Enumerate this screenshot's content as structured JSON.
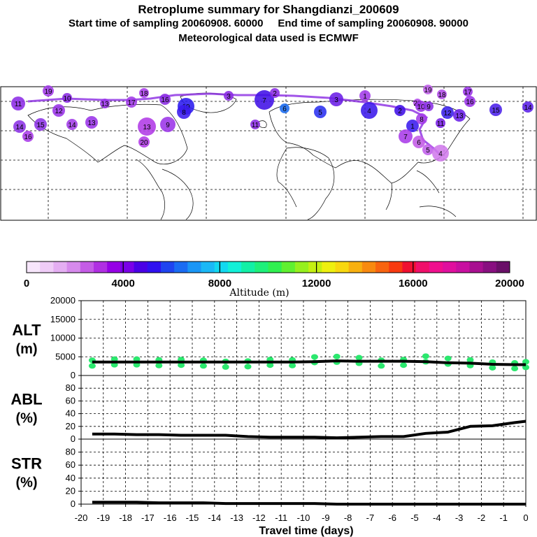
{
  "header": {
    "title": "Retroplume summary for Shangdianzi_200609",
    "subtitle": "Start time of sampling 20060908. 60000     End time of sampling 20060908. 90000",
    "met": "Meteorological data used is ECMWF"
  },
  "colorbar": {
    "label": "Altitude (m)",
    "ticks": [
      "0",
      "4000",
      "8000",
      "12000",
      "16000",
      "20000"
    ],
    "colors": [
      "#f7e6fb",
      "#efccf7",
      "#e4aef2",
      "#d68aec",
      "#c45ce6",
      "#b02fe2",
      "#9600e6",
      "#7a00e8",
      "#4a00e6",
      "#2f10f0",
      "#1f44f0",
      "#1a6cf3",
      "#1a96f6",
      "#1ab8f6",
      "#12d8f0",
      "#12f0d8",
      "#12f0a6",
      "#1ef07a",
      "#30f050",
      "#60f030",
      "#96f01e",
      "#c4f012",
      "#eef010",
      "#f8d810",
      "#f8b010",
      "#f88a10",
      "#f86410",
      "#f83a10",
      "#f01030",
      "#f0106a",
      "#f0108e",
      "#e0109e",
      "#c810a0",
      "#a81090",
      "#881080",
      "#6a1068"
    ]
  },
  "map": {
    "labels": [
      "19",
      "11",
      "12",
      "14",
      "10",
      "13",
      "16",
      "18",
      "17",
      "15",
      "14",
      "13",
      "16",
      "10",
      "8",
      "9",
      "7",
      "6",
      "5",
      "3",
      "4",
      "2",
      "1",
      "20",
      "19",
      "18",
      "17",
      "16",
      "15",
      "14",
      "13",
      "12",
      "11",
      "10",
      "9",
      "8",
      "7",
      "6",
      "5",
      "4",
      "3",
      "2",
      "1",
      "11",
      "13",
      "20"
    ]
  },
  "chart_data": [
    {
      "type": "line",
      "panel": "ALT",
      "ylabel": [
        "ALT",
        "(m)"
      ],
      "ylim": [
        0,
        20000
      ],
      "yticks": [
        0,
        5000,
        10000,
        15000,
        20000
      ],
      "x": [
        -19.5,
        -18.5,
        -17.5,
        -16.5,
        -15.5,
        -14.5,
        -13.5,
        -12.5,
        -11.5,
        -10.5,
        -9.5,
        -8.5,
        -7.5,
        -6.5,
        -5.5,
        -4.5,
        -3.5,
        -2.5,
        -1.5,
        -0.5,
        0
      ],
      "series": [
        {
          "name": "mean altitude",
          "values": [
            3600,
            3600,
            3600,
            3600,
            3600,
            3600,
            3600,
            3600,
            3600,
            3600,
            3700,
            3900,
            3800,
            3800,
            3800,
            3700,
            3400,
            3300,
            3000,
            2900,
            2900
          ]
        },
        {
          "name": "plume altitude samples",
          "values": [
            3500,
            3800,
            3800,
            3600,
            3700,
            3500,
            3200,
            3300,
            3700,
            3600,
            4400,
            4500,
            4200,
            3500,
            3700,
            4600,
            4000,
            3600,
            3000,
            2800,
            3100
          ]
        }
      ]
    },
    {
      "type": "line",
      "panel": "ABL",
      "ylabel": [
        "ABL",
        "(%)"
      ],
      "ylim": [
        0,
        100
      ],
      "yticks": [
        0,
        20,
        40,
        60,
        80
      ],
      "x": [
        -19.5,
        -18.5,
        -17.5,
        -16.5,
        -15.5,
        -14.5,
        -13.5,
        -12.5,
        -11.5,
        -10.5,
        -9.5,
        -8.5,
        -7.5,
        -6.5,
        -5.5,
        -4.5,
        -3.5,
        -2.5,
        -1.5,
        -0.5,
        0
      ],
      "series": [
        {
          "name": "ABL",
          "values": [
            8,
            8,
            7,
            7,
            6,
            6,
            6,
            4,
            3,
            3,
            3,
            2,
            3,
            4,
            4,
            9,
            11,
            20,
            21,
            26,
            28
          ]
        }
      ]
    },
    {
      "type": "line",
      "panel": "STR",
      "ylabel": [
        "STR",
        "(%)"
      ],
      "ylim": [
        0,
        100
      ],
      "yticks": [
        0,
        20,
        40,
        60,
        80
      ],
      "x": [
        -19.5,
        -18.5,
        -17.5,
        -16.5,
        -15.5,
        -14.5,
        -13.5,
        -12.5,
        -11.5,
        -10.5,
        -9.5,
        -8.5,
        -7.5,
        -6.5,
        -5.5,
        -4.5,
        -3.5,
        -2.5,
        -1.5,
        -0.5,
        0
      ],
      "series": [
        {
          "name": "STR",
          "values": [
            3,
            3,
            3,
            2,
            2,
            2,
            1,
            1,
            1,
            1,
            1,
            0,
            0,
            0,
            0,
            0,
            0,
            0,
            0,
            0,
            0
          ]
        }
      ]
    }
  ],
  "xaxis": {
    "label": "Travel time (days)",
    "ticks": [
      "-20",
      "-19",
      "-18",
      "-17",
      "-16",
      "-15",
      "-14",
      "-13",
      "-12",
      "-11",
      "-10",
      "-9",
      "-8",
      "-7",
      "-6",
      "-5",
      "-4",
      "-3",
      "-2",
      "-1",
      "0"
    ]
  }
}
